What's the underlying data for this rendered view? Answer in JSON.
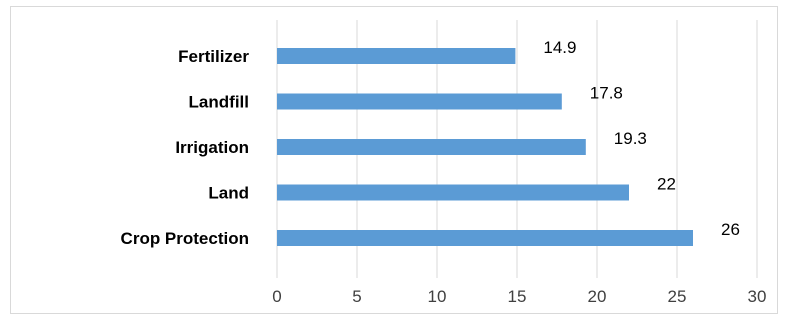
{
  "chart_data": {
    "type": "bar",
    "orientation": "horizontal",
    "categories": [
      "Fertilizer",
      "Landfill",
      "Irrigation",
      "Land",
      "Crop Protection"
    ],
    "values": [
      14.9,
      17.8,
      19.3,
      22,
      26
    ],
    "data_labels": [
      "14.9",
      "17.8",
      "19.3",
      "22",
      "26"
    ],
    "xlim": [
      0,
      30
    ],
    "xticks": [
      0,
      5,
      10,
      15,
      20,
      25,
      30
    ],
    "xtick_labels": [
      "0",
      "5",
      "10",
      "15",
      "20",
      "25",
      "30"
    ],
    "title": "",
    "xlabel": "",
    "ylabel": "",
    "grid": true,
    "legend": false,
    "bar_color": "#5b9bd5"
  }
}
